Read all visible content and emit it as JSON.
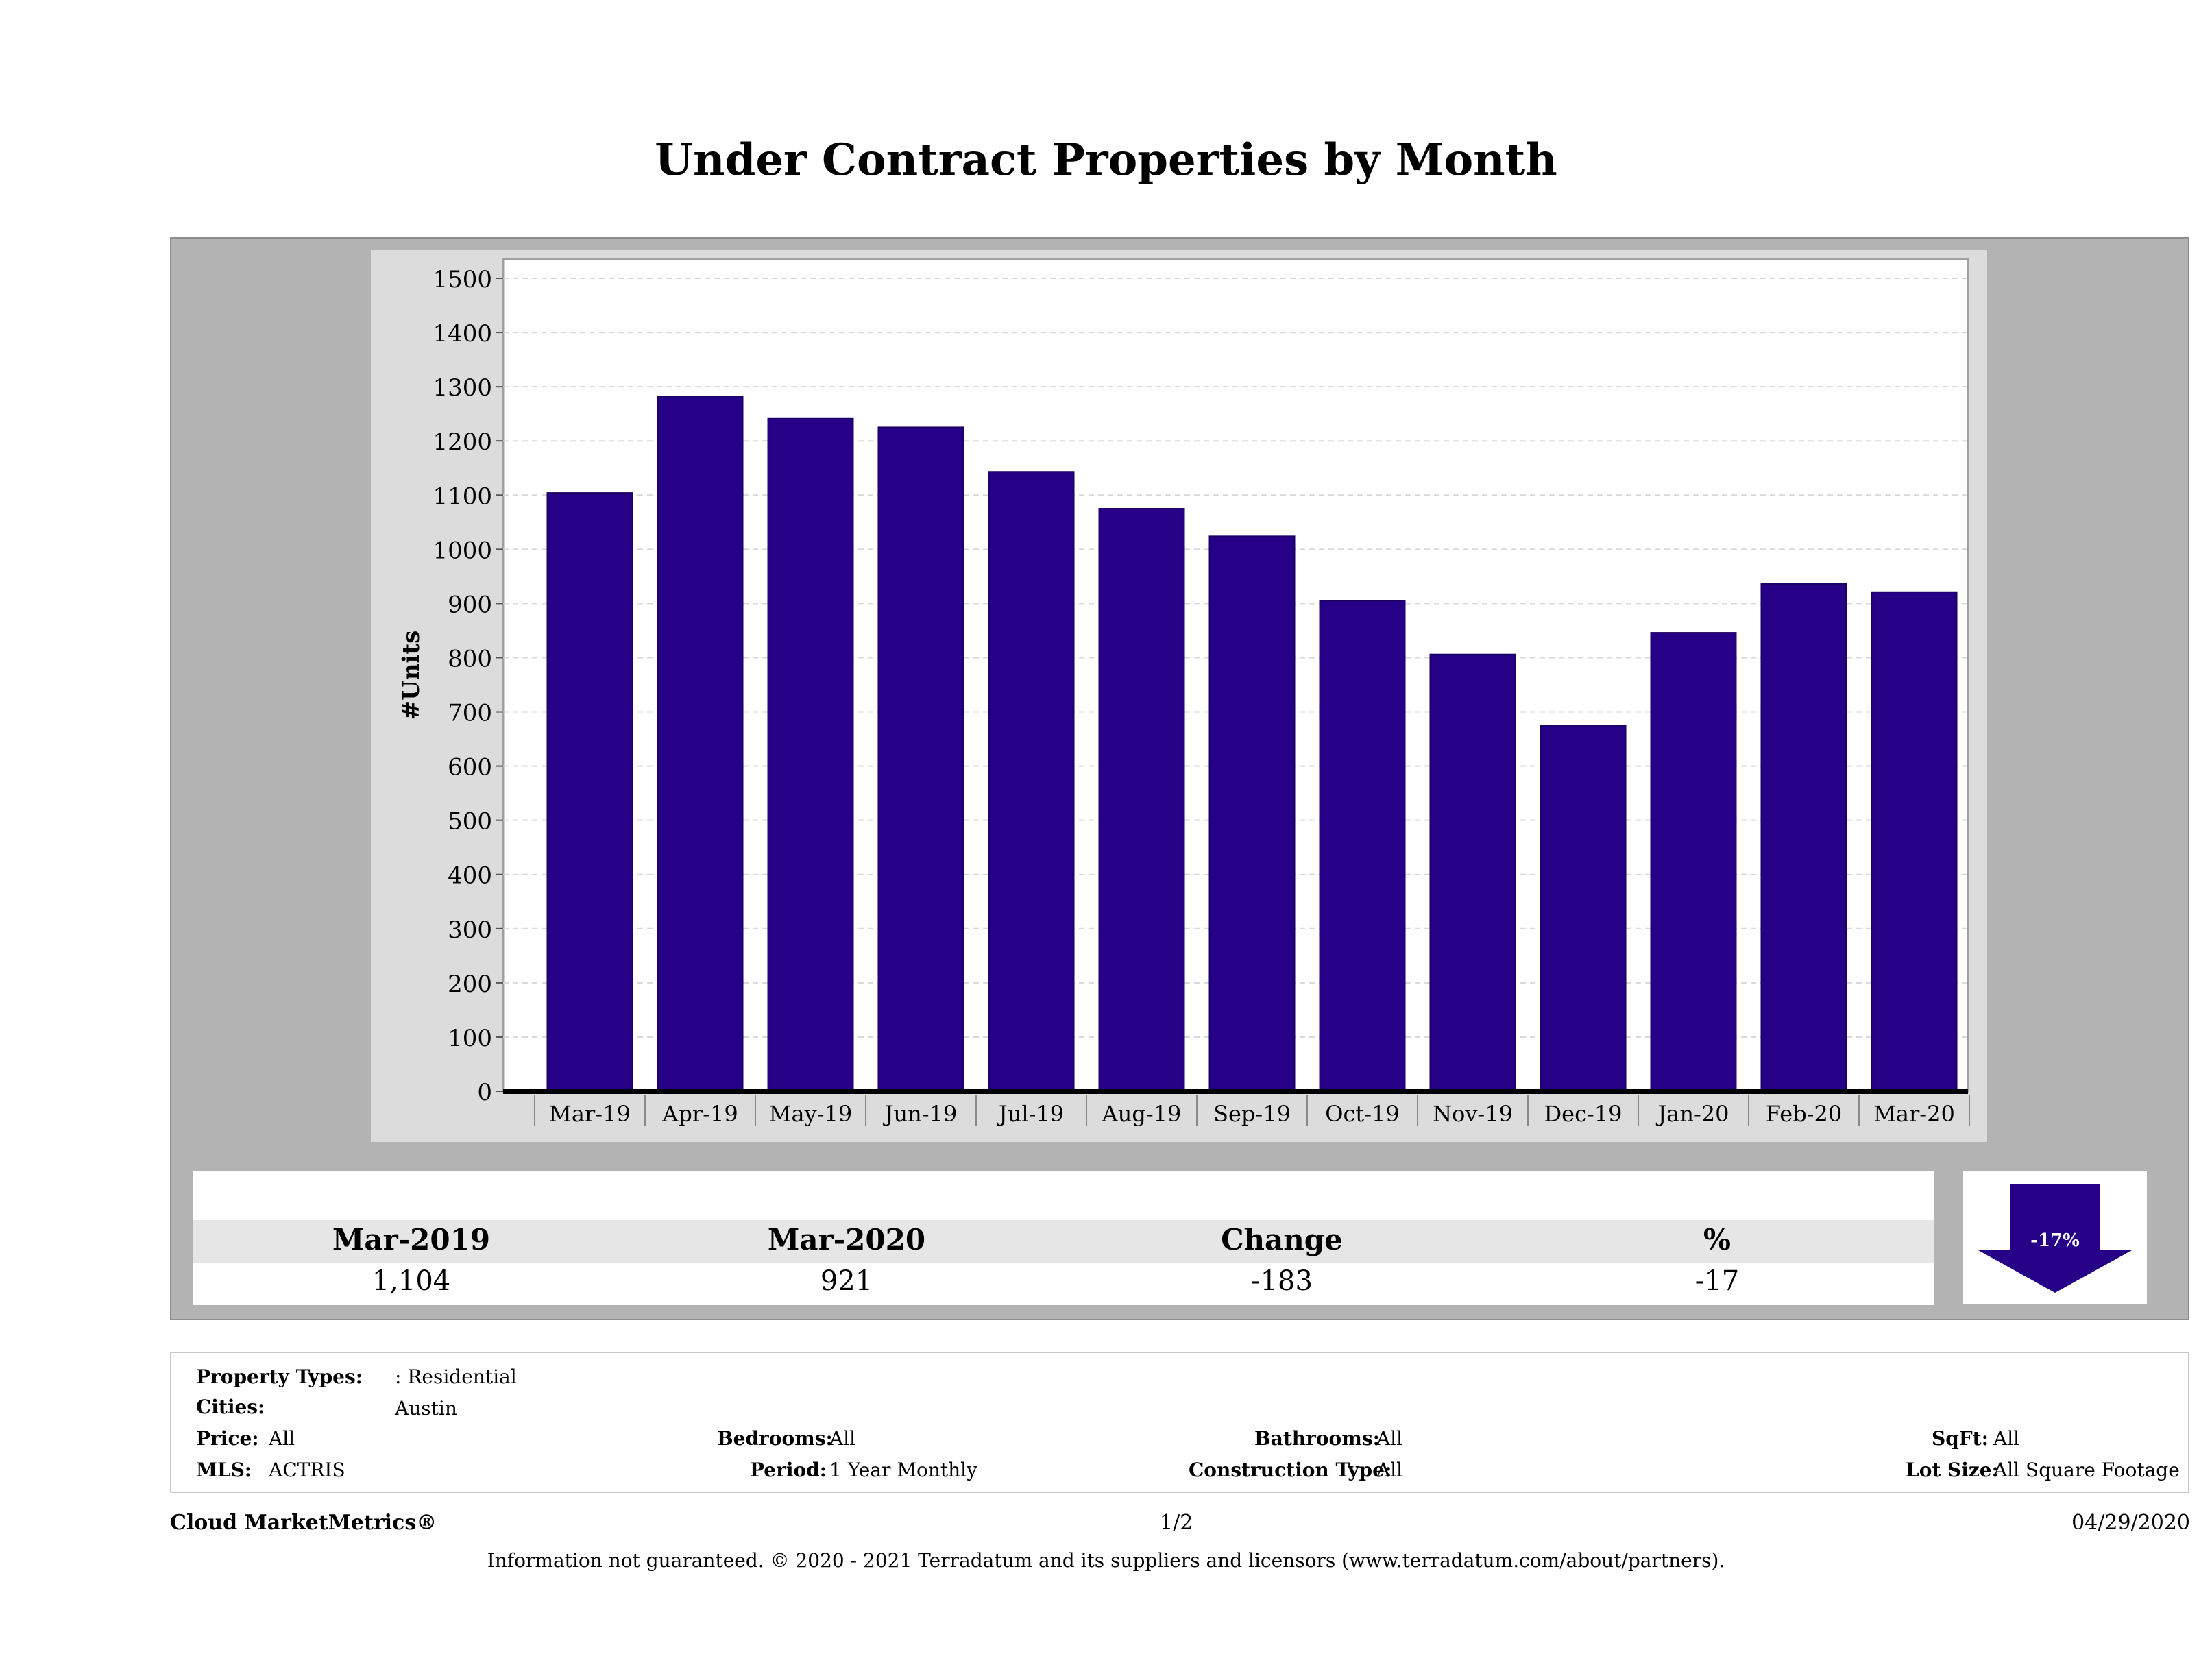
{
  "chart_data": {
    "type": "bar",
    "title": "Under Contract Properties by Month",
    "ylabel": "#Units",
    "xlabel": "",
    "categories": [
      "Mar-19",
      "Apr-19",
      "May-19",
      "Jun-19",
      "Jul-19",
      "Aug-19",
      "Sep-19",
      "Oct-19",
      "Nov-19",
      "Dec-19",
      "Jan-20",
      "Feb-20",
      "Mar-20"
    ],
    "values": [
      1104,
      1282,
      1241,
      1225,
      1143,
      1075,
      1024,
      905,
      806,
      675,
      846,
      936,
      921
    ],
    "ylim": [
      0,
      1500
    ],
    "yticks": [
      "0",
      "100",
      "200",
      "300",
      "400",
      "500",
      "600",
      "700",
      "800",
      "900",
      "1000",
      "1100",
      "1200",
      "1300",
      "1400",
      "1500"
    ],
    "grid": true,
    "bar_color": "#270088"
  },
  "summary": {
    "headers": [
      "Mar-2019",
      "Mar-2020",
      "Change",
      "%"
    ],
    "values": [
      "1,104",
      "921",
      "-183",
      "-17"
    ],
    "badge": "-17%",
    "arrow_color": "#270088"
  },
  "filters": {
    "property_types_label": "Property Types:",
    "property_types_value": ": Residential",
    "cities_label": "Cities:",
    "cities_value": "Austin",
    "price_label": "Price:",
    "price_value": "All",
    "bedrooms_label": "Bedrooms:",
    "bedrooms_value": "All",
    "bathrooms_label": "Bathrooms:",
    "bathrooms_value": "All",
    "sqft_label": "SqFt:",
    "sqft_value": "All",
    "mls_label": "MLS:",
    "mls_value": "ACTRIS",
    "period_label": "Period:",
    "period_value": "1 Year Monthly",
    "construction_label": "Construction Type:",
    "construction_value": "All",
    "lotsize_label": "Lot Size:",
    "lotsize_value": "All Square Footage"
  },
  "footer": {
    "brand": "Cloud MarketMetrics®",
    "page": "1/2",
    "date": "04/29/2020",
    "disclaimer": "Information not guaranteed. © 2020 - 2021 Terradatum and its suppliers and licensors (www.terradatum.com/about/partners)."
  }
}
